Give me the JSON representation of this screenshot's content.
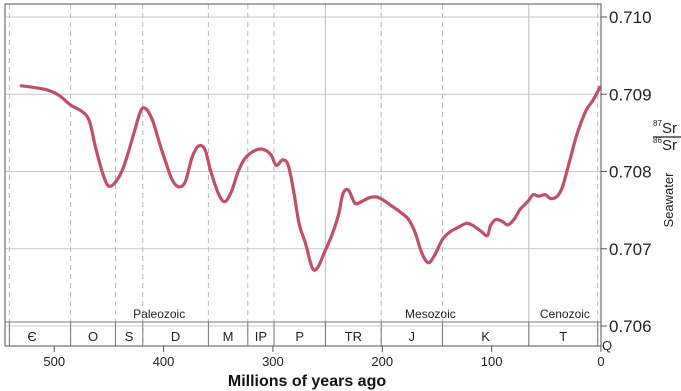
{
  "chart_data": {
    "type": "line",
    "xlabel": "Millions of years ago",
    "x_ticks": [
      500,
      400,
      300,
      200,
      100,
      0
    ],
    "xlim": [
      545,
      0
    ],
    "ylim": [
      0.7058,
      0.7101
    ],
    "y_ticks": [
      "0.710",
      "0.709",
      "0.708",
      "0.707",
      "0.706"
    ],
    "ylabel_main": "Seawater",
    "ylabel_ratio": {
      "num_mass": "87",
      "num_elem": "Sr",
      "den_mass": "86",
      "den_elem": "Sr"
    },
    "grid": true,
    "line_color": "#c0506a",
    "eras": [
      {
        "name": "Paleozoic",
        "x": 404
      },
      {
        "name": "Mesozoic",
        "x": 156
      },
      {
        "name": "Cenozoic",
        "x": 33
      }
    ],
    "era_boundaries": [
      252,
      66
    ],
    "periods": [
      {
        "label": "Є",
        "start": 541,
        "end": 485
      },
      {
        "label": "O",
        "start": 485,
        "end": 444
      },
      {
        "label": "S",
        "start": 444,
        "end": 419
      },
      {
        "label": "D",
        "start": 419,
        "end": 359
      },
      {
        "label": "M",
        "start": 359,
        "end": 323
      },
      {
        "label": "IP",
        "start": 323,
        "end": 299
      },
      {
        "label": "P",
        "start": 299,
        "end": 252
      },
      {
        "label": "TR",
        "start": 252,
        "end": 201
      },
      {
        "label": "J",
        "start": 201,
        "end": 145
      },
      {
        "label": "K",
        "start": 145,
        "end": 66
      },
      {
        "label": "T",
        "start": 66,
        "end": 3
      },
      {
        "label": "Q",
        "start": 3,
        "end": 0
      }
    ],
    "series": [
      {
        "values": [
          [
            530,
            0.70911
          ],
          [
            515,
            0.70908
          ],
          [
            505,
            0.70905
          ],
          [
            495,
            0.70898
          ],
          [
            485,
            0.70886
          ],
          [
            475,
            0.70878
          ],
          [
            468,
            0.70866
          ],
          [
            462,
            0.7083
          ],
          [
            455,
            0.70795
          ],
          [
            450,
            0.70781
          ],
          [
            443,
            0.70788
          ],
          [
            436,
            0.70808
          ],
          [
            428,
            0.70845
          ],
          [
            421,
            0.70878
          ],
          [
            416,
            0.70881
          ],
          [
            410,
            0.70866
          ],
          [
            404,
            0.70838
          ],
          [
            398,
            0.70812
          ],
          [
            392,
            0.70789
          ],
          [
            386,
            0.7078
          ],
          [
            380,
            0.70787
          ],
          [
            374,
            0.70818
          ],
          [
            368,
            0.70833
          ],
          [
            362,
            0.70828
          ],
          [
            357,
            0.70801
          ],
          [
            350,
            0.70772
          ],
          [
            344,
            0.70761
          ],
          [
            338,
            0.70774
          ],
          [
            332,
            0.70799
          ],
          [
            326,
            0.70816
          ],
          [
            318,
            0.70826
          ],
          [
            310,
            0.70829
          ],
          [
            302,
            0.70822
          ],
          [
            297,
            0.70808
          ],
          [
            291,
            0.70815
          ],
          [
            286,
            0.70808
          ],
          [
            281,
            0.70774
          ],
          [
            276,
            0.70732
          ],
          [
            270,
            0.70706
          ],
          [
            264,
            0.70675
          ],
          [
            259,
            0.70676
          ],
          [
            253,
            0.70695
          ],
          [
            246,
            0.70718
          ],
          [
            240,
            0.70744
          ],
          [
            236,
            0.70771
          ],
          [
            231,
            0.70776
          ],
          [
            225,
            0.70759
          ],
          [
            219,
            0.70761
          ],
          [
            212,
            0.70766
          ],
          [
            205,
            0.70767
          ],
          [
            198,
            0.70762
          ],
          [
            191,
            0.70755
          ],
          [
            184,
            0.70748
          ],
          [
            176,
            0.70738
          ],
          [
            170,
            0.70721
          ],
          [
            164,
            0.70695
          ],
          [
            158,
            0.70682
          ],
          [
            152,
            0.70692
          ],
          [
            145,
            0.70712
          ],
          [
            138,
            0.70722
          ],
          [
            130,
            0.70728
          ],
          [
            123,
            0.70733
          ],
          [
            117,
            0.7073
          ],
          [
            110,
            0.70723
          ],
          [
            104,
            0.70717
          ],
          [
            101,
            0.7073
          ],
          [
            96,
            0.70738
          ],
          [
            90,
            0.70735
          ],
          [
            85,
            0.70731
          ],
          [
            79,
            0.70739
          ],
          [
            74,
            0.70751
          ],
          [
            67,
            0.70761
          ],
          [
            62,
            0.7077
          ],
          [
            57,
            0.70768
          ],
          [
            51,
            0.7077
          ],
          [
            46,
            0.70765
          ],
          [
            40,
            0.70768
          ],
          [
            35,
            0.70781
          ],
          [
            29,
            0.70812
          ],
          [
            22,
            0.70848
          ],
          [
            14,
            0.70878
          ],
          [
            7,
            0.70893
          ],
          [
            1,
            0.70909
          ]
        ]
      }
    ]
  }
}
